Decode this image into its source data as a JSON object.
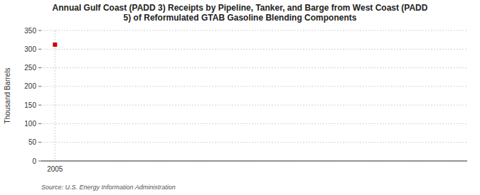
{
  "chart_data": {
    "type": "scatter",
    "title": "Annual Gulf Coast (PADD 3) Receipts by Pipeline, Tanker, and Barge from West Coast (PADD\n5) of Reformulated GTAB Gasoline Blending Components",
    "ylabel": "Thousand Barrels",
    "source": "Source: U.S. Energy Information Administration",
    "x": [
      2005
    ],
    "values": [
      312
    ],
    "color": "#cc0000",
    "marker": "square",
    "xlim": [
      2004.4,
      2023
    ],
    "ylim": [
      0,
      350
    ],
    "xticks": [
      2005
    ],
    "yticks": [
      0,
      50,
      100,
      150,
      200,
      250,
      300,
      350
    ],
    "grid": true
  }
}
